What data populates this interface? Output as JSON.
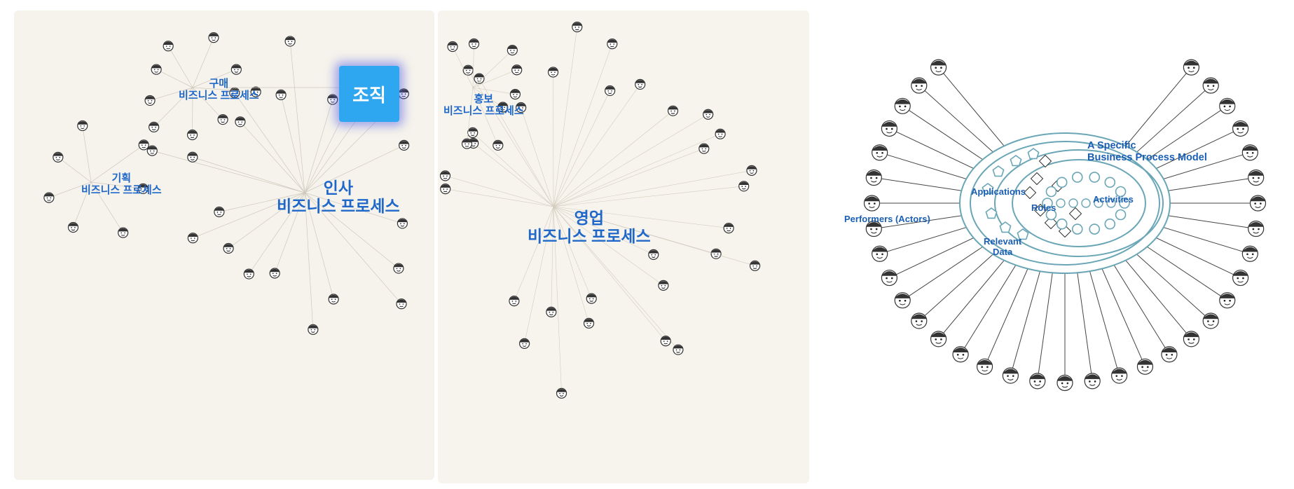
{
  "left_panel": {
    "org_label": "조직",
    "purchasing": {
      "title": "구매",
      "subtitle": "비즈니스 프로세스"
    },
    "planning": {
      "title": "기획",
      "subtitle": "비즈니스 프로세스"
    },
    "hr": {
      "title": "인사",
      "subtitle": "비즈니스 프로세스"
    }
  },
  "middle_panel": {
    "pr": {
      "title": "홍보",
      "subtitle": "비즈니스 프로세스"
    },
    "sales": {
      "title": "영업",
      "subtitle": "비즈니스 프로세스"
    }
  },
  "right_panel": {
    "model_title_line1": "A Specific",
    "model_title_line2": "Business Process Model",
    "applications": "Applications",
    "roles": "Roles",
    "activities": "Activities",
    "performers": "Performers (Actors)",
    "relevant_data_line1": "Relevant",
    "relevant_data_line2": "Data"
  },
  "colors": {
    "label_blue": "#1f68c9",
    "org_box": "#2fa6f0",
    "diagram_teal": "#6aa6b6",
    "paper": "#f6f3ec"
  }
}
